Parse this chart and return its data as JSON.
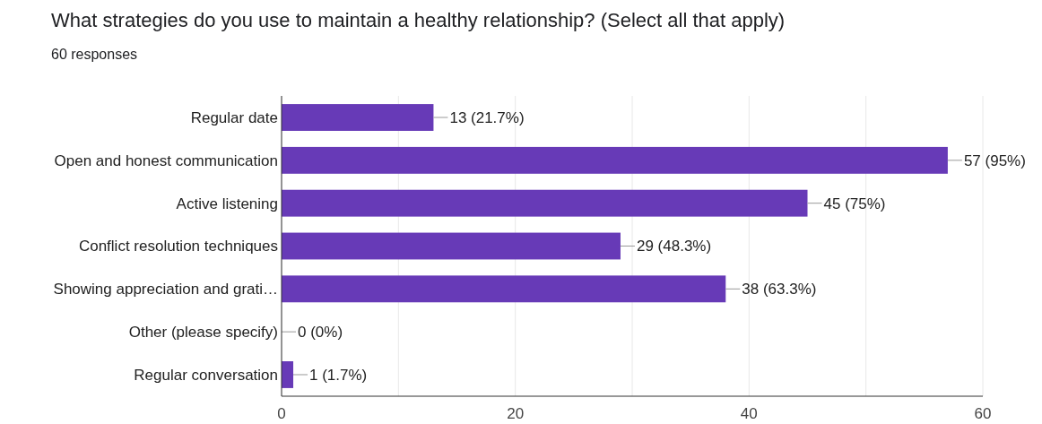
{
  "chart_data": {
    "type": "bar",
    "orientation": "horizontal",
    "title": "What strategies do you use to maintain a healthy relationship? (Select all that apply)",
    "subtitle": "60 responses",
    "categories": [
      "Regular date",
      "Open and honest communication",
      "Active listening",
      "Conflict resolution techniques",
      "Showing appreciation and grati…",
      "Other (please specify)",
      "Regular conversation"
    ],
    "values": [
      13,
      57,
      45,
      29,
      38,
      0,
      1
    ],
    "value_labels": [
      "13 (21.7%)",
      "57 (95%)",
      "45 (75%)",
      "29 (48.3%)",
      "38 (63.3%)",
      "0 (0%)",
      "1 (1.7%)"
    ],
    "color": "#673ab7",
    "xlim": [
      0,
      60
    ],
    "xticks": [
      0,
      {
        "value": 10,
        "label": null
      },
      20,
      {
        "value": 30,
        "label": null
      },
      40,
      {
        "value": 50,
        "label": null
      },
      60
    ],
    "grid": "x"
  }
}
